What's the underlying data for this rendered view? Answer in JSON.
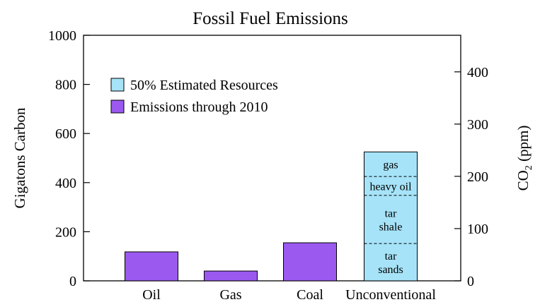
{
  "chart_data": {
    "type": "bar",
    "title": "Fossil Fuel Emissions",
    "xlabel": "",
    "ylabel": "Gigatons Carbon",
    "ylabel_right": {
      "main": "CO",
      "sub": "2",
      "unit": " (ppm)"
    },
    "ylim": [
      0,
      1000
    ],
    "yticks": [
      "0",
      "200",
      "400",
      "600",
      "800",
      "1000"
    ],
    "ylim_right": [
      0,
      470
    ],
    "yticks_right": [
      "0",
      "100",
      "200",
      "300",
      "400"
    ],
    "categories": [
      "Oil",
      "Gas",
      "Coal",
      "Unconventional"
    ],
    "series": [
      {
        "name": "50% Estimated Resources",
        "color": "#a6e3f8",
        "values": [
          0,
          0,
          0,
          525
        ]
      },
      {
        "name": "Emissions through 2010",
        "color": "#9b59f0",
        "values": [
          118,
          40,
          155,
          0
        ]
      }
    ],
    "stack_segments": [
      {
        "category": "Unconventional",
        "label": [
          "tar",
          "sands"
        ],
        "from": 0,
        "to": 152
      },
      {
        "category": "Unconventional",
        "label": [
          "tar",
          "shale"
        ],
        "from": 152,
        "to": 348
      },
      {
        "category": "Unconventional",
        "label": [
          "heavy oil"
        ],
        "from": 348,
        "to": 425
      },
      {
        "category": "Unconventional",
        "label": [
          "gas"
        ],
        "from": 425,
        "to": 525
      }
    ],
    "legend_position": "upper-left",
    "grid": false
  }
}
